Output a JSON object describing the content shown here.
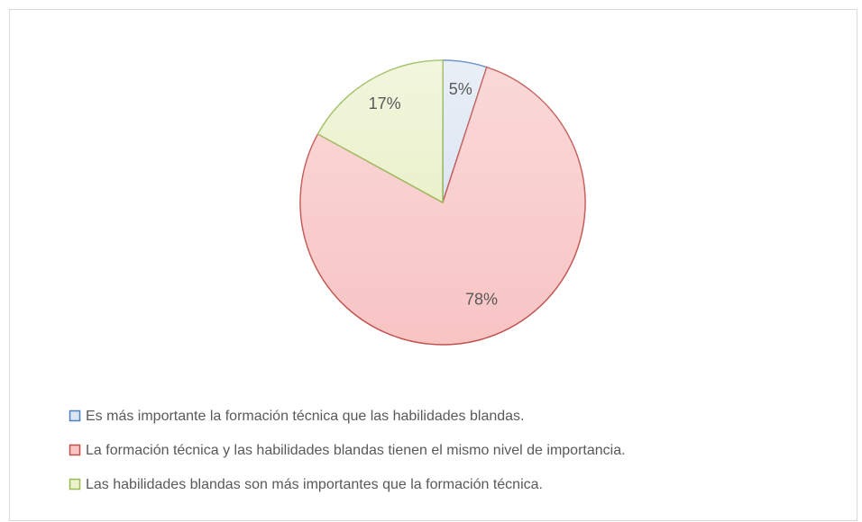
{
  "chart_data": {
    "type": "pie",
    "categories": [
      "Es más importante la formación técnica que las habilidades blandas.",
      "La formación técnica y las habilidades blandas tienen el mismo nivel de importancia.",
      "Las habilidades blandas son más importantes que la formación técnica."
    ],
    "values": [
      5,
      78,
      17
    ],
    "value_labels": [
      "5%",
      "78%",
      "17%"
    ],
    "colors": [
      "#dce6f2",
      "#f8c4c4",
      "#ebf1cc"
    ],
    "edge_colors": [
      "#4f81bd",
      "#c0504d",
      "#9bbb59"
    ],
    "legend": "bottom"
  }
}
